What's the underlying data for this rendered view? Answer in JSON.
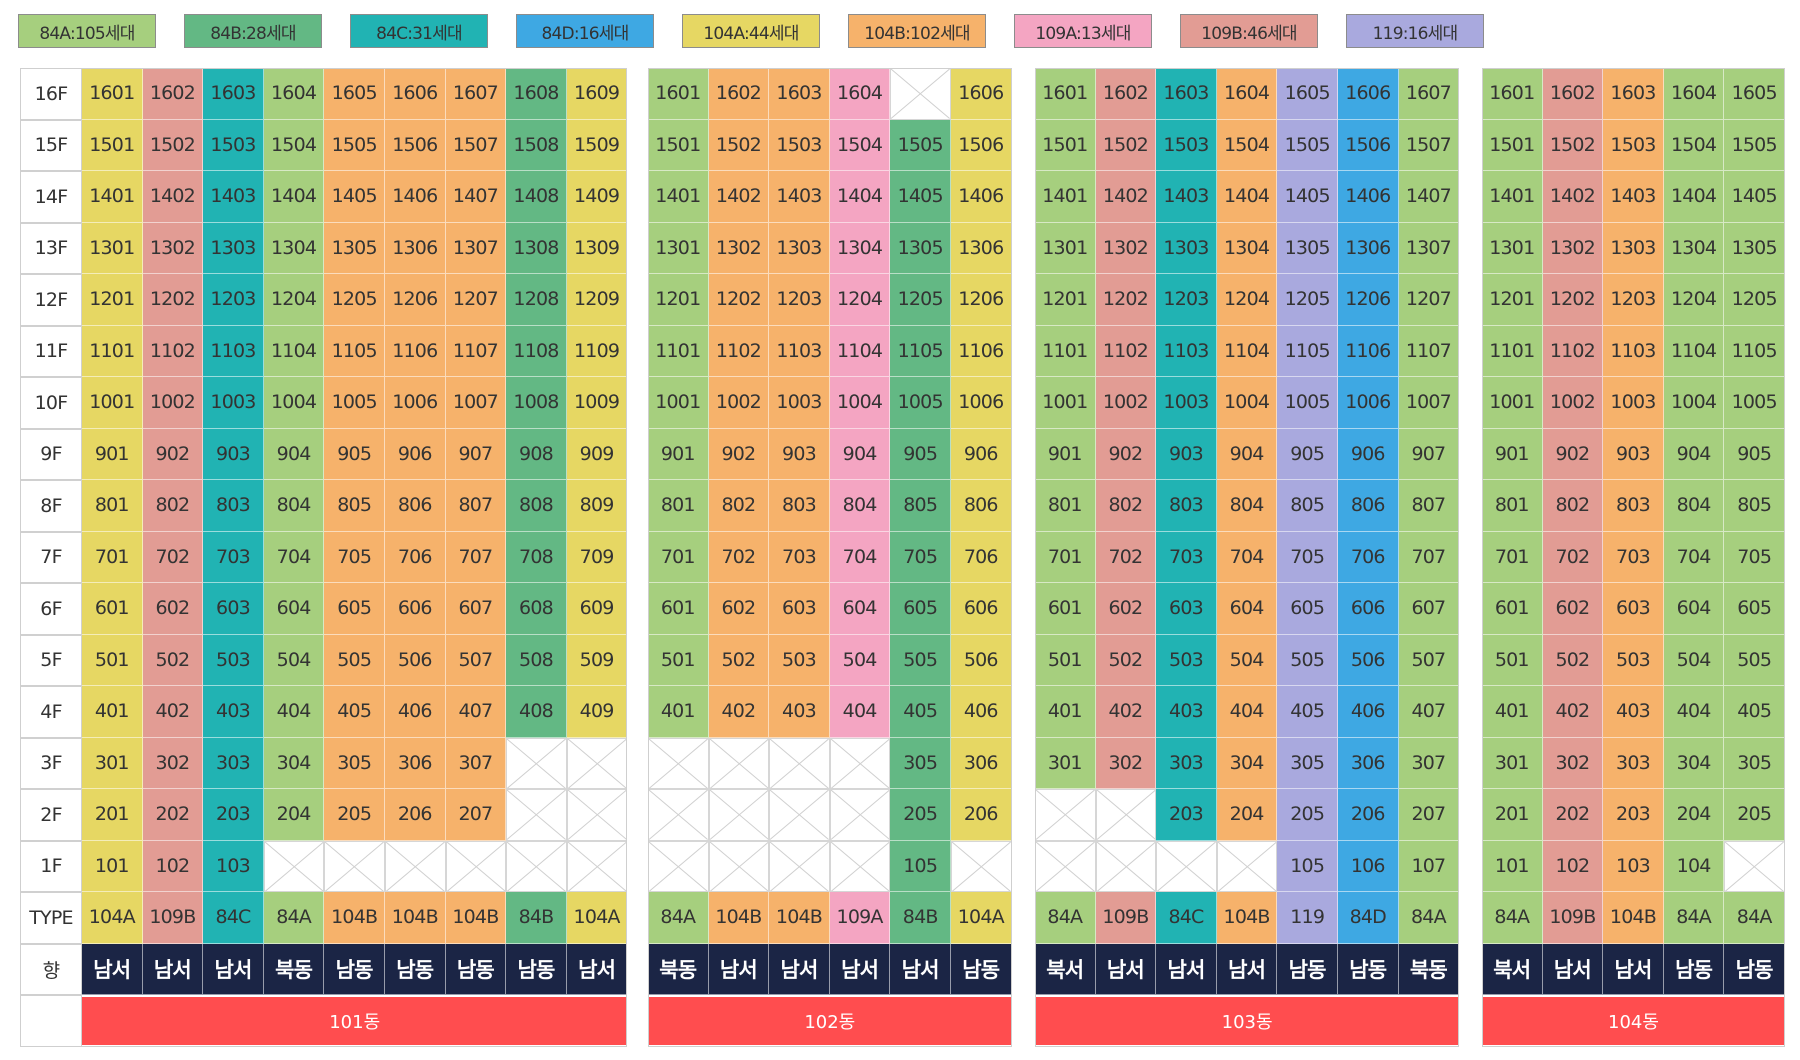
{
  "colors": {
    "84A": "#a6cf7e",
    "84B": "#63b884",
    "84C": "#21b3b3",
    "84D": "#3ea8e3",
    "104A": "#e6d763",
    "104B": "#f6b26b",
    "109A": "#f4a5c2",
    "109B": "#e29c94",
    "119": "#a9a9de",
    "direction_bg": "#1b2545",
    "building_bar": "#ff4d4f"
  },
  "legend": [
    {
      "type": "84A",
      "label": "84A:105세대"
    },
    {
      "type": "84B",
      "label": "84B:28세대"
    },
    {
      "type": "84C",
      "label": "84C:31세대"
    },
    {
      "type": "84D",
      "label": "84D:16세대"
    },
    {
      "type": "104A",
      "label": "104A:44세대"
    },
    {
      "type": "104B",
      "label": "104B:102세대"
    },
    {
      "type": "109A",
      "label": "109A:13세대"
    },
    {
      "type": "109B",
      "label": "109B:46세대"
    },
    {
      "type": "119",
      "label": "119:16세대"
    }
  ],
  "floors": [
    "16F",
    "15F",
    "14F",
    "13F",
    "12F",
    "11F",
    "10F",
    "9F",
    "8F",
    "7F",
    "6F",
    "5F",
    "4F",
    "3F",
    "2F",
    "1F"
  ],
  "type_row_label": "TYPE",
  "direction_row_label": "향",
  "buildings": [
    {
      "name": "101동",
      "columns": [
        {
          "line": "01",
          "type": "104A",
          "direction": "남서",
          "lowest_floor": 1
        },
        {
          "line": "02",
          "type": "109B",
          "direction": "남서",
          "lowest_floor": 1
        },
        {
          "line": "03",
          "type": "84C",
          "direction": "남서",
          "lowest_floor": 1
        },
        {
          "line": "04",
          "type": "84A",
          "direction": "북동",
          "lowest_floor": 2
        },
        {
          "line": "05",
          "type": "104B",
          "direction": "남동",
          "lowest_floor": 2
        },
        {
          "line": "06",
          "type": "104B",
          "direction": "남동",
          "lowest_floor": 2
        },
        {
          "line": "07",
          "type": "104B",
          "direction": "남동",
          "lowest_floor": 2
        },
        {
          "line": "08",
          "type": "84B",
          "direction": "남동",
          "lowest_floor": 4
        },
        {
          "line": "09",
          "type": "104A",
          "direction": "남서",
          "lowest_floor": 4
        }
      ],
      "missing": []
    },
    {
      "name": "102동",
      "columns": [
        {
          "line": "01",
          "type": "84A",
          "direction": "북동",
          "lowest_floor": 4
        },
        {
          "line": "02",
          "type": "104B",
          "direction": "남서",
          "lowest_floor": 4
        },
        {
          "line": "03",
          "type": "104B",
          "direction": "남서",
          "lowest_floor": 4
        },
        {
          "line": "04",
          "type": "109A",
          "direction": "남서",
          "lowest_floor": 4
        },
        {
          "line": "05",
          "type": "84B",
          "direction": "남서",
          "lowest_floor": 1
        },
        {
          "line": "06",
          "type": "104A",
          "direction": "남동",
          "lowest_floor": 2
        }
      ],
      "missing": [
        "1605"
      ]
    },
    {
      "name": "103동",
      "columns": [
        {
          "line": "01",
          "type": "84A",
          "direction": "북서",
          "lowest_floor": 3
        },
        {
          "line": "02",
          "type": "109B",
          "direction": "남서",
          "lowest_floor": 3
        },
        {
          "line": "03",
          "type": "84C",
          "direction": "남서",
          "lowest_floor": 2
        },
        {
          "line": "04",
          "type": "104B",
          "direction": "남서",
          "lowest_floor": 2
        },
        {
          "line": "05",
          "type": "119",
          "direction": "남동",
          "lowest_floor": 1
        },
        {
          "line": "06",
          "type": "84D",
          "direction": "남동",
          "lowest_floor": 1
        },
        {
          "line": "07",
          "type": "84A",
          "direction": "북동",
          "lowest_floor": 1
        }
      ],
      "missing": []
    },
    {
      "name": "104동",
      "columns": [
        {
          "line": "01",
          "type": "84A",
          "direction": "북서",
          "lowest_floor": 1
        },
        {
          "line": "02",
          "type": "109B",
          "direction": "남서",
          "lowest_floor": 1
        },
        {
          "line": "03",
          "type": "104B",
          "direction": "남서",
          "lowest_floor": 1
        },
        {
          "line": "04",
          "type": "84A",
          "direction": "남동",
          "lowest_floor": 1
        },
        {
          "line": "05",
          "type": "84A",
          "direction": "남동",
          "lowest_floor": 2
        }
      ],
      "missing": []
    }
  ]
}
